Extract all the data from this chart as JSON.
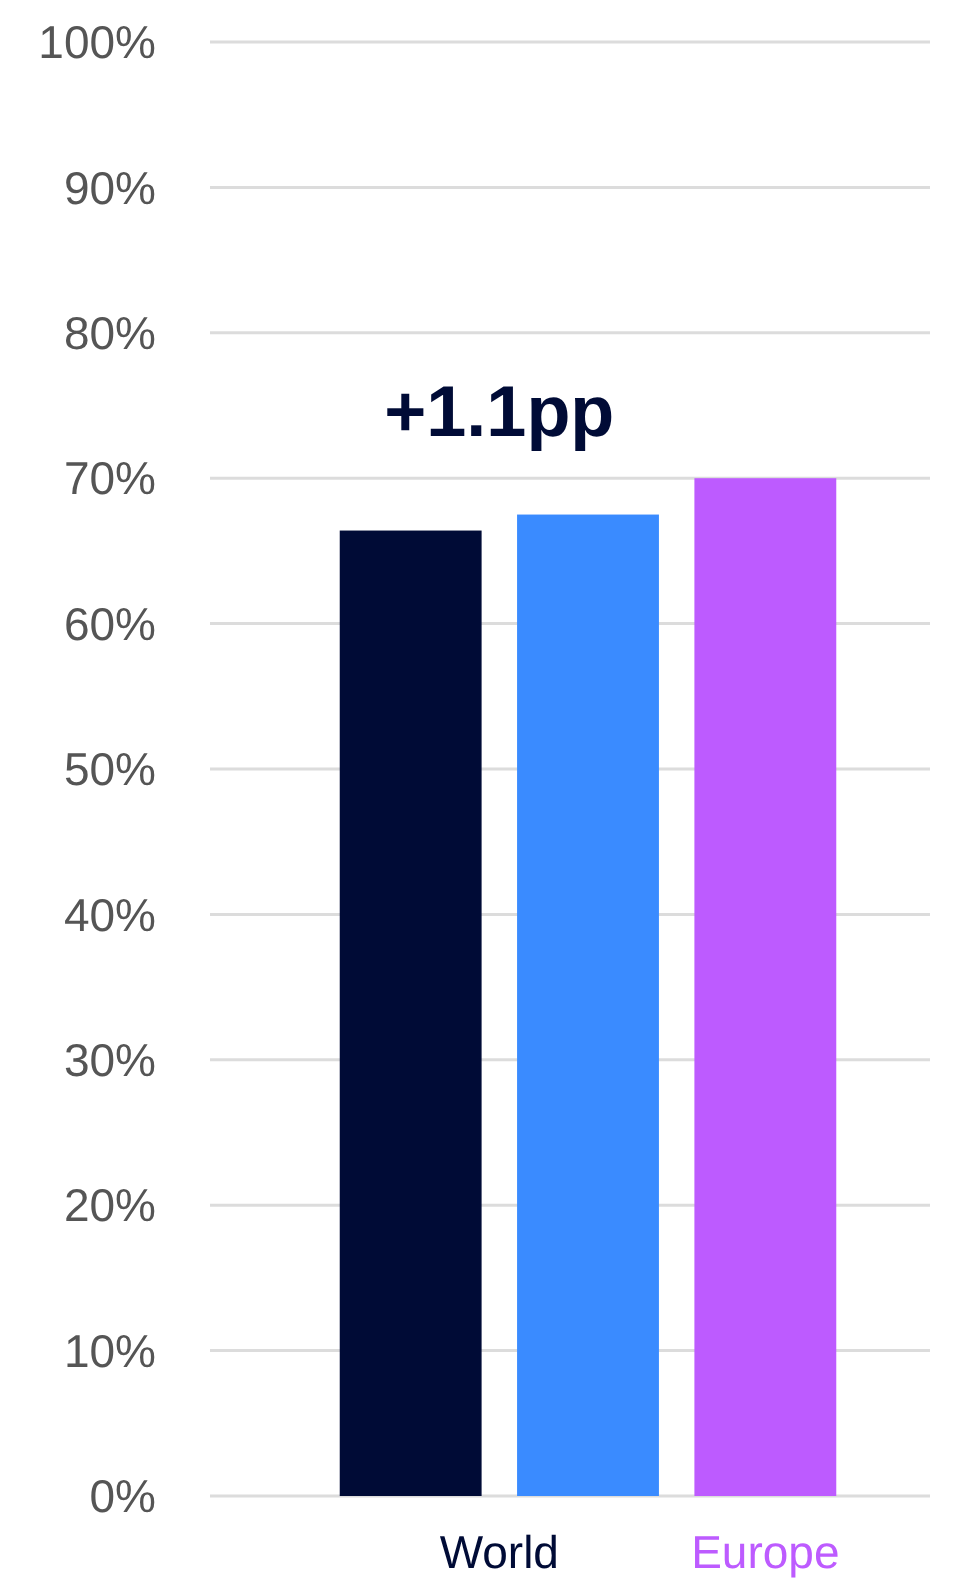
{
  "chart_data": {
    "type": "bar",
    "categories": [
      "World",
      "Europe"
    ],
    "series": [
      {
        "color": "#000b36",
        "values": [
          66.4,
          null
        ]
      },
      {
        "color": "#3a8bff",
        "values": [
          67.5,
          null
        ]
      },
      {
        "color": "#bd5bff",
        "values": [
          null,
          70.0
        ]
      }
    ],
    "ylim": [
      0,
      100
    ],
    "yticks": [
      {
        "value": 0,
        "label": "0%"
      },
      {
        "value": 10,
        "label": "10%"
      },
      {
        "value": 20,
        "label": "20%"
      },
      {
        "value": 30,
        "label": "30%"
      },
      {
        "value": 40,
        "label": "40%"
      },
      {
        "value": 50,
        "label": "50%"
      },
      {
        "value": 60,
        "label": "60%"
      },
      {
        "value": 70,
        "label": "70%"
      },
      {
        "value": 80,
        "label": "80%"
      },
      {
        "value": 90,
        "label": "90%"
      },
      {
        "value": 100,
        "label": "100%"
      }
    ],
    "grid": "y",
    "annotations": [
      "+1.1pp"
    ]
  }
}
